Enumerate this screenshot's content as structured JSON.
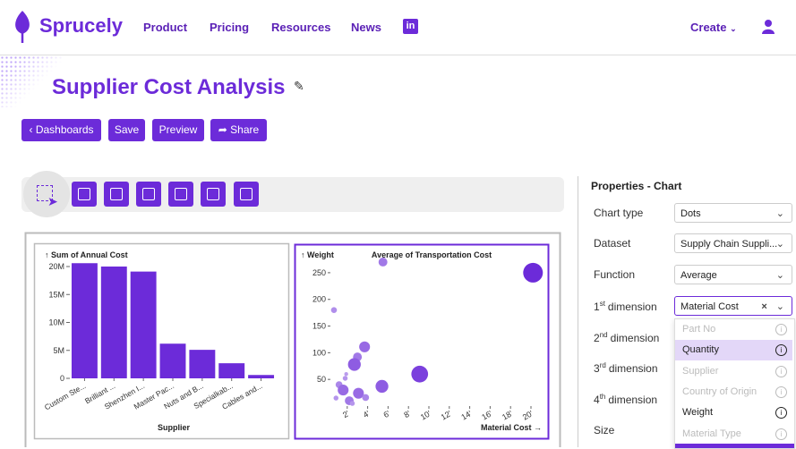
{
  "header": {
    "brand": "Sprucely",
    "nav": [
      "Product",
      "Pricing",
      "Resources",
      "News"
    ],
    "create": "Create"
  },
  "page": {
    "title": "Supplier Cost Analysis",
    "buttons": [
      "Dashboards",
      "Save",
      "Preview",
      "Share"
    ]
  },
  "chart_data": [
    {
      "type": "bar",
      "y_label": "↑ Sum of Annual Cost",
      "x_label": "Supplier",
      "categories": [
        "Custom Ste...",
        "Brilliant ...",
        "Shenzhen I...",
        "Master Pac...",
        "Nuts and B...",
        "Specialkab...",
        "Cables and..."
      ],
      "values": [
        20600000,
        20000000,
        19100000,
        6200000,
        5100000,
        2700000,
        600000
      ],
      "color": "#6c2bd9",
      "ylim": [
        0,
        21000000
      ],
      "yticks": [
        0,
        {
          "value": 5000000,
          "label": "5M"
        },
        {
          "value": 10000000,
          "label": "10M"
        },
        {
          "value": 15000000,
          "label": "15M"
        },
        {
          "value": 20000000,
          "label": "20M"
        }
      ]
    },
    {
      "type": "scatter",
      "title": "Average of Transportation Cost",
      "y_label": "↑ Weight",
      "x_label": "Material Cost →",
      "x": [
        20.2,
        5.5,
        0.7,
        3.7,
        3.0,
        2.7,
        9.1,
        5.4,
        3.1,
        1.8,
        1.2,
        1.6,
        0.9,
        2.2,
        3.8,
        2.5,
        1.9
      ],
      "values": [
        250,
        270,
        180,
        111,
        92,
        78,
        60,
        37,
        24,
        52,
        40,
        30,
        15,
        10,
        16,
        5,
        60
      ],
      "sizes": [
        10,
        4.5,
        3,
        5.5,
        4.5,
        6.5,
        8.5,
        6.5,
        5.5,
        2.5,
        3.5,
        5.5,
        2.5,
        4.5,
        3.5,
        2.5,
        2
      ],
      "color_low": "#cdb8f2",
      "color_high": "#6c2bd9",
      "xlim": [
        0,
        21
      ],
      "ylim": [
        0,
        275
      ],
      "xticks": [
        {
          "value": 2,
          "label": "2'"
        },
        {
          "value": 4,
          "label": "4'"
        },
        {
          "value": 6,
          "label": "6'"
        },
        {
          "value": 8,
          "label": "8'"
        },
        {
          "value": 10,
          "label": "10'"
        },
        {
          "value": 12,
          "label": "12'"
        },
        {
          "value": 14,
          "label": "14'"
        },
        {
          "value": 16,
          "label": "16'"
        },
        {
          "value": 18,
          "label": "18'"
        },
        {
          "value": 20,
          "label": "20'"
        }
      ],
      "yticks": [
        50,
        100,
        150,
        200,
        250
      ]
    }
  ],
  "properties": {
    "title": "Properties - Chart",
    "rows": [
      {
        "label": "Chart type",
        "value": "Dots"
      },
      {
        "label": "Dataset",
        "value": "Supply Chain Suppli..."
      },
      {
        "label": "Function",
        "value": "Average"
      },
      {
        "ordinal": "1",
        "suffix": "st",
        "label": "dimension",
        "value": "Material Cost"
      },
      {
        "ordinal": "2",
        "suffix": "nd",
        "label": "dimension"
      },
      {
        "ordinal": "3",
        "suffix": "rd",
        "label": "dimension"
      },
      {
        "ordinal": "4",
        "suffix": "th",
        "label": "dimension"
      },
      {
        "label": "Size"
      }
    ],
    "options": [
      {
        "label": "Part No",
        "enabled": false
      },
      {
        "label": "Quantity",
        "enabled": true,
        "highlighted": true
      },
      {
        "label": "Supplier",
        "enabled": false
      },
      {
        "label": "Country of Origin",
        "enabled": false
      },
      {
        "label": "Weight",
        "enabled": true
      },
      {
        "label": "Material Type",
        "enabled": false
      }
    ]
  }
}
